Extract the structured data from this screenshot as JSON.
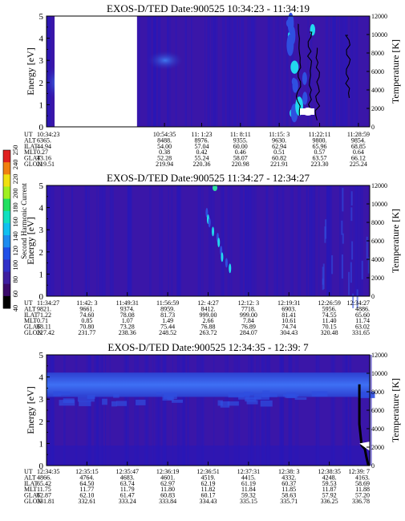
{
  "colors": {
    "background": "#ffffff",
    "spectrogram_base": "#3a16a8",
    "spectrogram_low": "#2818b8",
    "spectrogram_mid": "#2f4fe0",
    "spectrogram_band": "#3b6cf2",
    "spectrogram_high": "#22d8ee",
    "data_gap": "#ffffff",
    "frame": "#000000",
    "trace": "#000000"
  },
  "colorbar": {
    "label": "Second Harmonic Current",
    "ticks": [
      "40",
      "60",
      "80",
      "100",
      "120",
      "140",
      "160",
      "180",
      "200",
      "220",
      "240",
      "250"
    ],
    "colors": [
      "#000000",
      "#3a0a6a",
      "#3e1ea0",
      "#3030c8",
      "#2050e8",
      "#1e8cf0",
      "#10c0f0",
      "#10e0c0",
      "#20e060",
      "#a0f020",
      "#f0e010",
      "#f08010",
      "#e02020"
    ]
  },
  "chart_data": [
    {
      "type": "heatmap",
      "title": "EXOS-D/TED   Date:900525  10:34:23 - 11:34:19",
      "ylabel": "Energy [eV]",
      "y2label": "Temperature [K]",
      "ylim": [
        0,
        5
      ],
      "yticks": [
        "0",
        "1",
        "2",
        "3",
        "4",
        "5"
      ],
      "y2lim": [
        0,
        12000
      ],
      "y2ticks": [
        "0",
        "2000",
        "4000",
        "6000",
        "8000",
        "10000",
        "12000"
      ],
      "data_gap_fraction": [
        0.025,
        0.28
      ],
      "table_labels": [
        "UT",
        "ALT",
        "ILAT",
        "MLT",
        "GLAT",
        "GLON"
      ],
      "columns": [
        {
          "UT": "10:34:23",
          "ALT": "6365.",
          "ILAT": "44.94",
          "MLT": "0.27",
          "GLAT": "43.16",
          "GLON": "219.51"
        },
        {
          "UT": "10:54:35",
          "ALT": "8488.",
          "ILAT": "54.00",
          "MLT": "0.38",
          "GLAT": "52.28",
          "GLON": "219.94"
        },
        {
          "UT": "11: 1:23",
          "ALT": "8976.",
          "ILAT": "57.04",
          "MLT": "0.42",
          "GLAT": "55.24",
          "GLON": "220.36"
        },
        {
          "UT": "11: 8:11",
          "ALT": "9355.",
          "ILAT": "60.00",
          "MLT": "0.46",
          "GLAT": "58.07",
          "GLON": "220.98"
        },
        {
          "UT": "11:15: 3",
          "ALT": "9630.",
          "ILAT": "62.94",
          "MLT": "0.51",
          "GLAT": "60.82",
          "GLON": "221.91"
        },
        {
          "UT": "11:22:11",
          "ALT": "9800.",
          "ILAT": "65.96",
          "MLT": "0.57",
          "GLAT": "63.57",
          "GLON": "223.30"
        },
        {
          "UT": "11:28:59",
          "ALT": "9854.",
          "ILAT": "68.85",
          "MLT": "0.64",
          "GLAT": "66.12",
          "GLON": "225.24"
        }
      ]
    },
    {
      "type": "heatmap",
      "title": "EXOS-D/TED   Date:900525  11:34:27 - 12:34:27",
      "ylabel": "Energy [eV]",
      "y2label": "Temperature [K]",
      "ylim": [
        0,
        5
      ],
      "yticks": [
        "0",
        "1",
        "2",
        "3",
        "4",
        "5"
      ],
      "y2lim": [
        0,
        12000
      ],
      "y2ticks": [
        "0",
        "2000",
        "4000",
        "6000",
        "8000",
        "10000",
        "12000"
      ],
      "table_labels": [
        "UT",
        "ALT",
        "ILAT",
        "MLT",
        "GLAT",
        "GLON"
      ],
      "columns": [
        {
          "UT": "11:34:27",
          "ALT": "9821.",
          "ILAT": "71.22",
          "MLT": "0.71",
          "GLAT": "68.11",
          "GLON": "227.42"
        },
        {
          "UT": "11:42: 3",
          "ALT": "9661.",
          "ILAT": "74.60",
          "MLT": "0.85",
          "GLAT": "70.80",
          "GLON": "231.77"
        },
        {
          "UT": "11:49:31",
          "ALT": "9374.",
          "ILAT": "78.08",
          "MLT": "1.07",
          "GLAT": "73.28",
          "GLON": "238.36"
        },
        {
          "UT": "11:56:59",
          "ALT": "8959.",
          "ILAT": "81.73",
          "MLT": "1.49",
          "GLAT": "75.44",
          "GLON": "248.52"
        },
        {
          "UT": "12: 4:27",
          "ALT": "8412.",
          "ILAT": "999.00",
          "MLT": "2.66",
          "GLAT": "76.88",
          "GLON": "263.72"
        },
        {
          "UT": "12:12: 3",
          "ALT": "7718.",
          "ILAT": "999.00",
          "MLT": "7.84",
          "GLAT": "76.89",
          "GLON": "284.07"
        },
        {
          "UT": "12:19:31",
          "ALT": "6903.",
          "ILAT": "81.41",
          "MLT": "10.61",
          "GLAT": "74.74",
          "GLON": "304.43"
        },
        {
          "UT": "12:26:59",
          "ALT": "5956.",
          "ILAT": "74.55",
          "MLT": "11.40",
          "GLAT": "70.15",
          "GLON": "320.48"
        },
        {
          "UT": "12:34:27",
          "ALT": "4886.",
          "ILAT": "65.60",
          "MLT": "11.74",
          "GLAT": "63.02",
          "GLON": "331.65"
        }
      ]
    },
    {
      "type": "heatmap",
      "title": "EXOS-D/TED   Date:900525  12:34:35 - 12:39: 7",
      "ylabel": "Energy [eV]",
      "y2label": "Temperature [K]",
      "ylim": [
        0,
        5
      ],
      "yticks": [
        "0",
        "1",
        "2",
        "3",
        "4",
        "5"
      ],
      "y2lim": [
        0,
        12000
      ],
      "y2ticks": [
        "0",
        "2000",
        "4000",
        "6000",
        "8000",
        "10000",
        "12000"
      ],
      "band_ev": [
        3.1,
        4.2
      ],
      "temperature_trace": [
        {
          "t": 0.968,
          "K": 8800
        },
        {
          "t": 0.968,
          "K": 4500
        },
        {
          "t": 0.975,
          "K": 2200
        },
        {
          "t": 0.985,
          "K": 1800
        },
        {
          "t": 0.99,
          "K": 900
        },
        {
          "t": 0.996,
          "K": 0
        }
      ],
      "table_labels": [
        "UT",
        "ALT",
        "ILAT",
        "MLT",
        "GLAT",
        "GLON"
      ],
      "columns": [
        {
          "UT": "12:34:35",
          "ALT": "4866.",
          "ILAT": "65.42",
          "MLT": "11.75",
          "GLAT": "62.87",
          "GLON": "331.81"
        },
        {
          "UT": "12:35:15",
          "ALT": "4764.",
          "ILAT": "64.50",
          "MLT": "11.77",
          "GLAT": "62.10",
          "GLON": "332.61"
        },
        {
          "UT": "12:35:47",
          "ALT": "4683.",
          "ILAT": "63.74",
          "MLT": "11.79",
          "GLAT": "61.47",
          "GLON": "333.24"
        },
        {
          "UT": "12:36:19",
          "ALT": "4601.",
          "ILAT": "62.97",
          "MLT": "11.80",
          "GLAT": "60.83",
          "GLON": "333.84"
        },
        {
          "UT": "12:36:51",
          "ALT": "4519.",
          "ILAT": "62.19",
          "MLT": "11.82",
          "GLAT": "60.17",
          "GLON": "334.43"
        },
        {
          "UT": "12:37:31",
          "ALT": "4415.",
          "ILAT": "61.19",
          "MLT": "11.84",
          "GLAT": "59.32",
          "GLON": "335.15"
        },
        {
          "UT": "12:38: 3",
          "ALT": "4332.",
          "ILAT": "60.37",
          "MLT": "11.85",
          "GLAT": "58.63",
          "GLON": "335.71"
        },
        {
          "UT": "12:38:35",
          "ALT": "4248.",
          "ILAT": "59.53",
          "MLT": "11.87",
          "GLAT": "57.92",
          "GLON": "336.25"
        },
        {
          "UT": "12:39: 7",
          "ALT": "4163.",
          "ILAT": "58.69",
          "MLT": "11.88",
          "GLAT": "57.20",
          "GLON": "336.78"
        }
      ]
    }
  ]
}
